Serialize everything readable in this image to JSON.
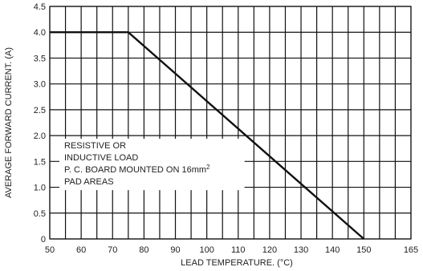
{
  "chart_data": {
    "type": "line",
    "xlabel": "LEAD TEMPERATURE. (°C)",
    "ylabel": "AVERAGE FORWARD CURRENT. (A)",
    "xlim": [
      50,
      165
    ],
    "ylim": [
      0,
      4.5
    ],
    "x_ticks": [
      50,
      60,
      70,
      80,
      90,
      100,
      110,
      120,
      130,
      140,
      150,
      165
    ],
    "y_ticks": [
      "0",
      "0.5",
      "1.0",
      "1.5",
      "2.0",
      "2.5",
      "3.0",
      "3.5",
      "4.0",
      "4.5"
    ],
    "x_minor_step": 5,
    "grid": true,
    "series": [
      {
        "x": [
          50,
          75,
          150
        ],
        "y": [
          4.0,
          4.0,
          0
        ]
      }
    ],
    "annotation": {
      "lines": [
        "RESISTIVE OR",
        "INDUCTIVE LOAD",
        "P. C. BOARD MOUNTED ON 16mm",
        "PAD AREAS"
      ],
      "superscript": "2"
    }
  }
}
